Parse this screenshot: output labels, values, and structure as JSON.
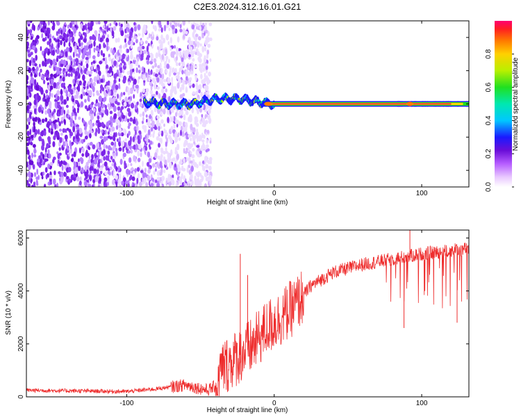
{
  "title": "C2E3.2024.312.16.01.G21",
  "colors": {
    "snr_line": "#ee2c2c",
    "band_core": "#e0243c",
    "band_edge": "#1a1aff",
    "noise": "#6a0dd8"
  },
  "chart_data": [
    {
      "type": "heatmap",
      "title": "C2E3.2024.312.16.01.G21",
      "xlabel": "Height of straight line (km)",
      "ylabel": "Frequency (Hz)",
      "xlim": [
        -168,
        132
      ],
      "ylim": [
        -50,
        50
      ],
      "xticks": [
        -100,
        0,
        100
      ],
      "yticks": [
        -40,
        -20,
        0,
        20,
        40
      ],
      "colorbar": {
        "label": "Normalized spectral amplitude",
        "range": [
          0,
          1
        ],
        "ticks": [
          "0.0",
          "0.2",
          "0.4",
          "0.6",
          "0.8"
        ]
      },
      "features": {
        "noise_region_x": [
          -168,
          -43
        ],
        "band_start_x": -88,
        "band_center_freq": [
          {
            "x": -88,
            "f": 1
          },
          {
            "x": -70,
            "f": 0
          },
          {
            "x": -55,
            "f": 0
          },
          {
            "x": -40,
            "f": 3
          },
          {
            "x": -22,
            "f": 3
          },
          {
            "x": -10,
            "f": 1
          },
          {
            "x": 0,
            "f": 0
          },
          {
            "x": 132,
            "f": 0
          }
        ]
      }
    },
    {
      "type": "line",
      "xlabel": "Height of straight line (km)",
      "ylabel": "SNR (10 * v/v)",
      "xlim": [
        -168,
        132
      ],
      "ylim": [
        0,
        6300
      ],
      "xticks": [
        -100,
        0,
        100
      ],
      "yticks": [
        0,
        2000,
        4000,
        6000
      ],
      "series": [
        {
          "values_note_free": true,
          "profile": [
            {
              "x": -168,
              "y": 250
            },
            {
              "x": -100,
              "y": 200
            },
            {
              "x": -80,
              "y": 300
            },
            {
              "x": -60,
              "y": 450
            },
            {
              "x": -45,
              "y": 250
            },
            {
              "x": -40,
              "y": 400
            },
            {
              "x": -35,
              "y": 1100
            },
            {
              "x": -25,
              "y": 1500
            },
            {
              "x": -15,
              "y": 1900
            },
            {
              "x": -5,
              "y": 2600
            },
            {
              "x": 5,
              "y": 3000
            },
            {
              "x": 15,
              "y": 3500
            },
            {
              "x": 25,
              "y": 4200
            },
            {
              "x": 40,
              "y": 4700
            },
            {
              "x": 60,
              "y": 5000
            },
            {
              "x": 80,
              "y": 5200
            },
            {
              "x": 100,
              "y": 5400
            },
            {
              "x": 132,
              "y": 5600
            }
          ],
          "spikes": [
            {
              "x": -23,
              "y": 5400
            },
            {
              "x": -18,
              "y": 4600
            },
            {
              "x": 92,
              "y": 6300
            },
            {
              "x": 88,
              "y": 2600
            },
            {
              "x": 124,
              "y": 2800
            }
          ]
        }
      ]
    }
  ]
}
